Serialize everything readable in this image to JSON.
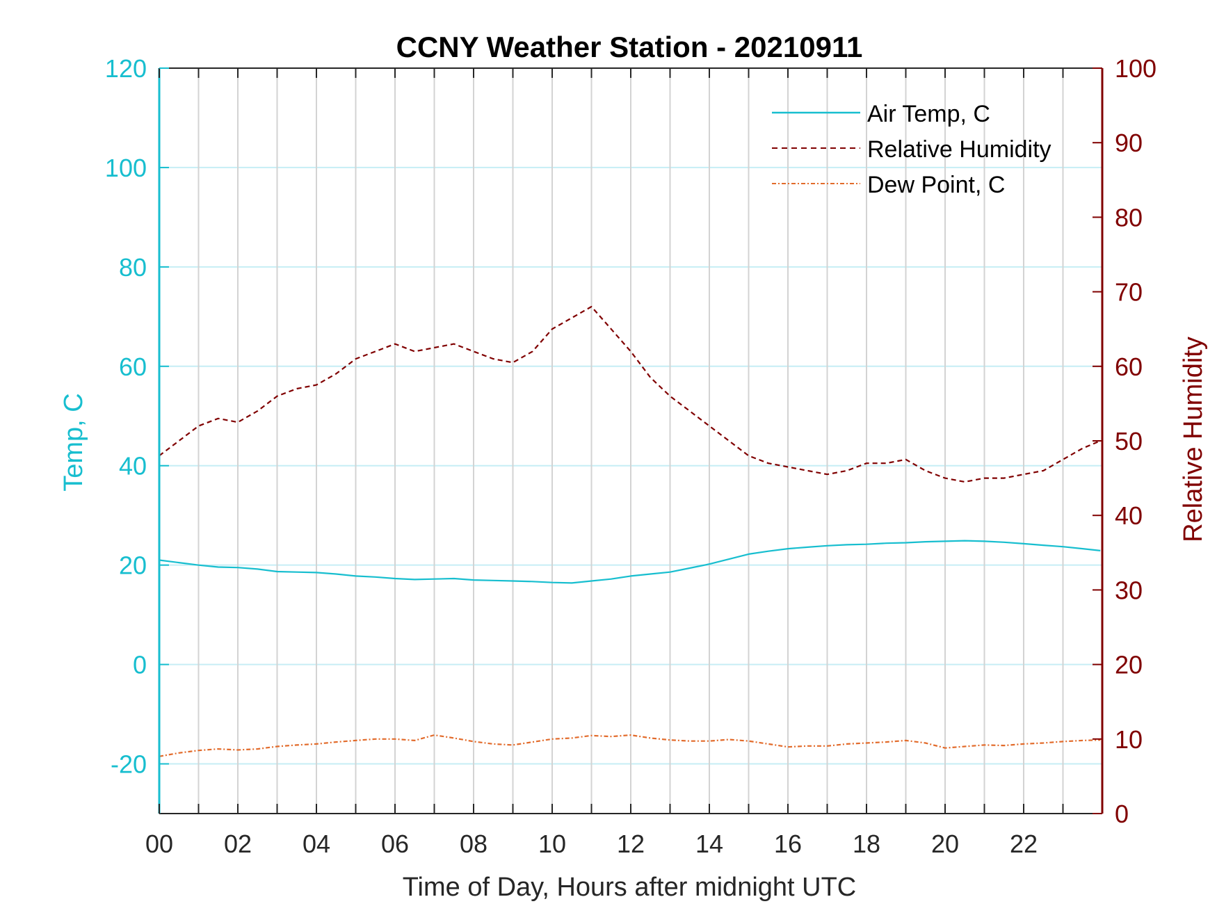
{
  "chart_data": {
    "type": "line",
    "title": "CCNY Weather Station - 20210911",
    "xlabel": "Time of Day, Hours after midnight UTC",
    "ylabel_left": "Temp, C",
    "ylabel_right": "Relative Humidity",
    "xlim": [
      0,
      24
    ],
    "ylim_left": [
      -30,
      120
    ],
    "ylim_right": [
      0,
      100
    ],
    "x_ticks": [
      0,
      2,
      4,
      6,
      8,
      10,
      12,
      14,
      16,
      18,
      20,
      22
    ],
    "x_tick_labels": [
      "00",
      "02",
      "04",
      "06",
      "08",
      "10",
      "12",
      "14",
      "16",
      "18",
      "20",
      "22"
    ],
    "y_left_ticks": [
      -20,
      0,
      20,
      40,
      60,
      80,
      100,
      120
    ],
    "y_left_tick_labels": [
      "-20",
      "0",
      "20",
      "40",
      "60",
      "80",
      "100",
      "120"
    ],
    "y_right_ticks": [
      0,
      10,
      20,
      30,
      40,
      50,
      60,
      70,
      80,
      90,
      100
    ],
    "y_right_tick_labels": [
      "0",
      "10",
      "20",
      "30",
      "40",
      "50",
      "60",
      "70",
      "80",
      "90",
      "100"
    ],
    "grid": "x-major every hour, y-major at left ticks",
    "legend_position": "top-right",
    "colors": {
      "left_axis": "#17BECF",
      "right_axis": "#800000",
      "air_temp": "#17BECF",
      "humidity": "#800000",
      "dew_point": "#E26B2B",
      "grid_x": "#D3D3D3",
      "grid_y": "#C6EEF5"
    },
    "series": [
      {
        "name": "Air Temp, C",
        "axis": "left",
        "style": "solid",
        "x": [
          0,
          0.5,
          1,
          1.5,
          2,
          2.5,
          3,
          3.5,
          4,
          4.5,
          5,
          5.5,
          6,
          6.5,
          7,
          7.5,
          8,
          8.5,
          9,
          9.5,
          10,
          10.5,
          11,
          11.5,
          12,
          12.5,
          13,
          13.5,
          14,
          14.5,
          15,
          15.5,
          16,
          16.5,
          17,
          17.5,
          18,
          18.5,
          19,
          19.5,
          20,
          20.5,
          21,
          21.5,
          22,
          22.5,
          23,
          23.5,
          23.95
        ],
        "y": [
          21,
          20.5,
          20,
          19.6,
          19.5,
          19.2,
          18.7,
          18.6,
          18.5,
          18.2,
          17.8,
          17.6,
          17.3,
          17.1,
          17.2,
          17.3,
          17,
          16.9,
          16.8,
          16.7,
          16.5,
          16.4,
          16.8,
          17.2,
          17.8,
          18.2,
          18.6,
          19.4,
          20.2,
          21.2,
          22.2,
          22.8,
          23.3,
          23.6,
          23.9,
          24.1,
          24.2,
          24.4,
          24.5,
          24.7,
          24.8,
          24.9,
          24.8,
          24.6,
          24.3,
          24,
          23.7,
          23.3,
          22.9
        ]
      },
      {
        "name": "Relative Humidity",
        "axis": "right",
        "style": "dashed",
        "x": [
          0,
          0.5,
          1,
          1.5,
          2,
          2.5,
          3,
          3.5,
          4,
          4.5,
          5,
          5.5,
          6,
          6.5,
          7,
          7.5,
          8,
          8.5,
          9,
          9.5,
          10,
          10.5,
          11,
          11.5,
          12,
          12.5,
          13,
          13.5,
          14,
          14.5,
          15,
          15.5,
          16,
          16.5,
          17,
          17.5,
          18,
          18.5,
          19,
          19.5,
          20,
          20.5,
          21,
          21.5,
          22,
          22.5,
          23,
          23.5,
          23.95
        ],
        "y": [
          48,
          50,
          52,
          53,
          52.5,
          54,
          56,
          57,
          57.5,
          59,
          61,
          62,
          63,
          62,
          62.5,
          63,
          62,
          61,
          60.5,
          62,
          65,
          66.5,
          68,
          65,
          62,
          58.5,
          56,
          54,
          52,
          50,
          48,
          47,
          46.5,
          46,
          45.5,
          46,
          47,
          47,
          47.5,
          46,
          45,
          44.5,
          45,
          45,
          45.5,
          46,
          47.5,
          49,
          50
        ]
      },
      {
        "name": "Dew Point, C",
        "axis": "left",
        "style": "dashdot",
        "x": [
          0,
          0.5,
          1,
          1.5,
          2,
          2.5,
          3,
          3.5,
          4,
          4.5,
          5,
          5.5,
          6,
          6.5,
          7,
          7.5,
          8,
          8.5,
          9,
          9.5,
          10,
          10.5,
          11,
          11.5,
          12,
          12.5,
          13,
          13.5,
          14,
          14.5,
          15,
          15.5,
          16,
          16.5,
          17,
          17.5,
          18,
          18.5,
          19,
          19.5,
          20,
          20.5,
          21,
          21.5,
          22,
          22.5,
          23,
          23.5,
          23.95
        ],
        "y": [
          -18.5,
          -17.8,
          -17.3,
          -17,
          -17.2,
          -17,
          -16.5,
          -16.2,
          -16,
          -15.6,
          -15.3,
          -15,
          -15,
          -15.3,
          -14.2,
          -14.8,
          -15.5,
          -16,
          -16.2,
          -15.6,
          -15,
          -14.8,
          -14.3,
          -14.5,
          -14.2,
          -14.8,
          -15.2,
          -15.4,
          -15.4,
          -15.1,
          -15.4,
          -16,
          -16.6,
          -16.4,
          -16.4,
          -16,
          -15.8,
          -15.6,
          -15.3,
          -15.8,
          -16.8,
          -16.5,
          -16.2,
          -16.3,
          -16,
          -15.8,
          -15.5,
          -15.3,
          -15.2
        ]
      }
    ]
  }
}
